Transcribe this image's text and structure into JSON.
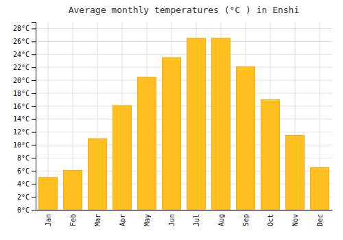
{
  "chart_data": {
    "type": "bar",
    "title": "Average monthly temperatures (°C ) in Enshi",
    "categories": [
      "Jan",
      "Feb",
      "Mar",
      "Apr",
      "May",
      "Jun",
      "Jul",
      "Aug",
      "Sep",
      "Oct",
      "Nov",
      "Dec"
    ],
    "values": [
      5.0,
      6.1,
      11.0,
      16.1,
      20.5,
      23.5,
      26.5,
      26.5,
      22.1,
      17.0,
      11.5,
      6.5
    ],
    "color": "#FFC020",
    "ylim": [
      0,
      29
    ],
    "yticks": [
      {
        "value": 0,
        "label": "0°C"
      },
      {
        "value": 2,
        "label": "2°C"
      },
      {
        "value": 4,
        "label": "4°C"
      },
      {
        "value": 6,
        "label": "6°C"
      },
      {
        "value": 8,
        "label": "8°C"
      },
      {
        "value": 10,
        "label": "10°C"
      },
      {
        "value": 12,
        "label": "12°C"
      },
      {
        "value": 14,
        "label": "14°C"
      },
      {
        "value": 16,
        "label": "16°C"
      },
      {
        "value": 18,
        "label": "18°C"
      },
      {
        "value": 20,
        "label": "20°C"
      },
      {
        "value": 22,
        "label": "22°C"
      },
      {
        "value": 24,
        "label": "24°C"
      },
      {
        "value": 26,
        "label": "26°C"
      },
      {
        "value": 28,
        "label": "28°C"
      }
    ],
    "grid": true
  }
}
